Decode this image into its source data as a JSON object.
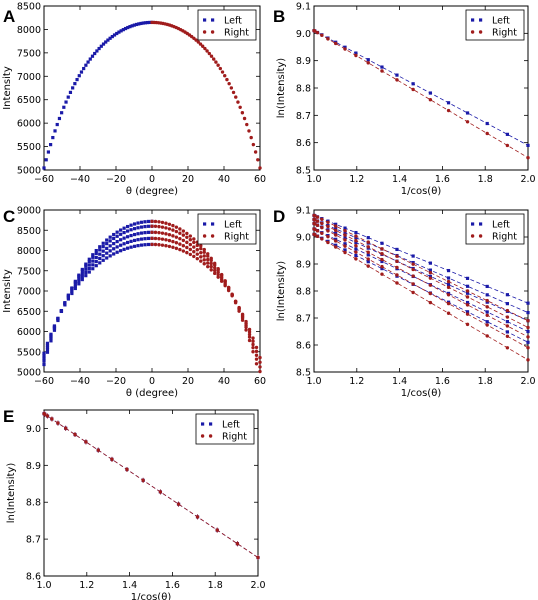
{
  "colors": {
    "left": "#1a1aa8",
    "right": "#a01c1c"
  },
  "legend_labels": {
    "left": "Left",
    "right": "Right"
  },
  "chart_data": [
    {
      "panel": "A",
      "type": "scatter",
      "xlabel": "θ (degree)",
      "ylabel": "Intensity",
      "xlim": [
        -60,
        60
      ],
      "ylim": [
        5000,
        8500
      ],
      "xticks": [
        -60,
        -40,
        -20,
        0,
        20,
        40,
        60
      ],
      "yticks": [
        5000,
        5500,
        6000,
        6500,
        7000,
        7500,
        8000,
        8500
      ],
      "legend": "top-right",
      "grid": false,
      "series": [
        {
          "name": "Left",
          "model": "cos_arc",
          "peak": 8150,
          "mu": 0.48,
          "x_range": [
            -60,
            0
          ],
          "n": 50
        },
        {
          "name": "Right",
          "model": "cos_arc",
          "peak": 8150,
          "mu": 0.48,
          "x_range": [
            0,
            60
          ],
          "n": 50
        }
      ]
    },
    {
      "panel": "B",
      "type": "line",
      "xlabel": "1/cos(θ)",
      "ylabel": "ln(Intensity)",
      "xlim": [
        1.0,
        2.0
      ],
      "ylim": [
        8.5,
        9.1
      ],
      "xticks": [
        1.0,
        1.2,
        1.4,
        1.6,
        1.8,
        2.0
      ],
      "yticks": [
        8.5,
        8.6,
        8.7,
        8.8,
        8.9,
        9.0,
        9.1
      ],
      "legend": "top-right",
      "grid": false,
      "series": [
        {
          "name": "Left",
          "model": "linear",
          "intercept": 9.01,
          "slope": -0.42,
          "x_range": [
            1.0,
            2.0
          ],
          "n": 18
        },
        {
          "name": "Right",
          "model": "linear",
          "intercept": 9.01,
          "slope": -0.465,
          "x_range": [
            1.0,
            2.0
          ],
          "n": 18
        }
      ]
    },
    {
      "panel": "C",
      "type": "scatter",
      "xlabel": "θ (degree)",
      "ylabel": "Intensity",
      "xlim": [
        -60,
        60
      ],
      "ylim": [
        5000,
        9000
      ],
      "xticks": [
        -60,
        -40,
        -20,
        0,
        20,
        40,
        60
      ],
      "yticks": [
        5000,
        5500,
        6000,
        6500,
        7000,
        7500,
        8000,
        8500,
        9000
      ],
      "legend": "top-right",
      "grid": false,
      "series": [
        {
          "name": "Left",
          "model": "cos_arc_family",
          "peaks": [
            8150,
            8300,
            8450,
            8600,
            8720
          ],
          "mus": [
            0.4,
            0.43,
            0.46,
            0.49,
            0.52
          ],
          "x_range": [
            -60,
            0
          ],
          "n": 32
        },
        {
          "name": "Right",
          "model": "cos_arc_family",
          "peaks": [
            8150,
            8300,
            8450,
            8600,
            8720
          ],
          "mus": [
            0.42,
            0.46,
            0.5,
            0.54,
            0.58
          ],
          "x_range": [
            0,
            60
          ],
          "n": 32
        }
      ]
    },
    {
      "panel": "D",
      "type": "line",
      "xlabel": "1/cos(θ)",
      "ylabel": "ln(Intensity)",
      "xlim": [
        1.0,
        2.0
      ],
      "ylim": [
        8.5,
        9.1
      ],
      "xticks": [
        1.0,
        1.2,
        1.4,
        1.6,
        1.8,
        2.0
      ],
      "yticks": [
        8.5,
        8.6,
        8.7,
        8.8,
        8.9,
        9.0,
        9.1
      ],
      "legend": "top-right",
      "grid": false,
      "series": [
        {
          "name": "Left",
          "model": "linear_family",
          "intercepts": [
            9.01,
            9.03,
            9.05,
            9.065,
            9.08
          ],
          "slopes": [
            -0.4,
            -0.38,
            -0.36,
            -0.345,
            -0.325
          ],
          "x_range": [
            1.0,
            2.0
          ],
          "n": 18
        },
        {
          "name": "Right",
          "model": "linear_family",
          "intercepts": [
            9.01,
            9.03,
            9.05,
            9.065,
            9.08
          ],
          "slopes": [
            -0.465,
            -0.44,
            -0.42,
            -0.4,
            -0.39
          ],
          "x_range": [
            1.0,
            2.0
          ],
          "n": 18
        }
      ]
    },
    {
      "panel": "E",
      "type": "line",
      "xlabel": "1/cos(θ)",
      "ylabel": "ln(Intensity)",
      "xlim": [
        1.0,
        2.0
      ],
      "ylim": [
        8.6,
        9.05
      ],
      "xticks": [
        1.0,
        1.2,
        1.4,
        1.6,
        1.8,
        2.0
      ],
      "yticks": [
        8.6,
        8.7,
        8.8,
        8.9,
        9.0
      ],
      "legend": "top-right",
      "grid": false,
      "series": [
        {
          "name": "Left",
          "model": "linear",
          "intercept": 9.04,
          "slope": -0.39,
          "x_range": [
            1.0,
            2.0
          ],
          "n": 18,
          "errorbars": true
        },
        {
          "name": "Right",
          "model": "linear",
          "intercept": 9.04,
          "slope": -0.39,
          "x_range": [
            1.0,
            2.0
          ],
          "n": 18,
          "errorbars": true
        }
      ]
    }
  ]
}
